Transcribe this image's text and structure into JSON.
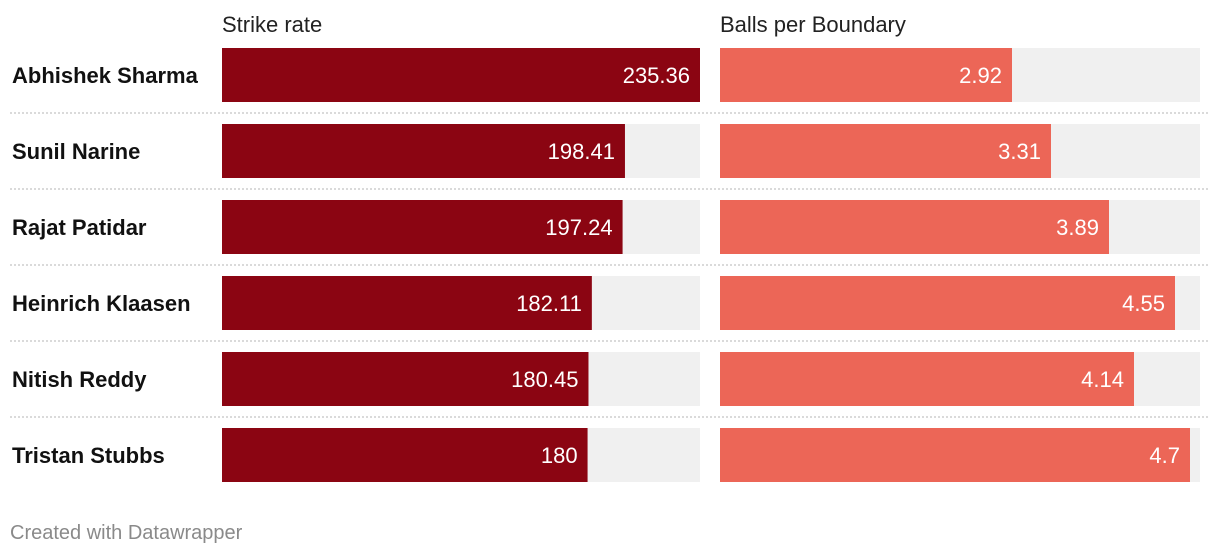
{
  "chart_data": {
    "type": "bar",
    "orientation": "horizontal",
    "categories": [
      "Abhishek Sharma",
      "Sunil Narine",
      "Rajat Patidar",
      "Heinrich Klaasen",
      "Nitish Reddy",
      "Tristan Stubbs"
    ],
    "series": [
      {
        "name": "Strike rate",
        "values": [
          235.36,
          198.41,
          197.24,
          182.11,
          180.45,
          180
        ],
        "color": "#8b0512",
        "max": 235.36
      },
      {
        "name": "Balls per Boundary",
        "values": [
          2.92,
          3.31,
          3.89,
          4.55,
          4.14,
          4.7
        ],
        "color": "#ec6657",
        "max": 4.8
      }
    ],
    "background_bar_color": "#f0f0f0",
    "grid": false,
    "title": "",
    "xlabel": "",
    "ylabel": ""
  },
  "footer": {
    "credit": "Created with Datawrapper"
  }
}
